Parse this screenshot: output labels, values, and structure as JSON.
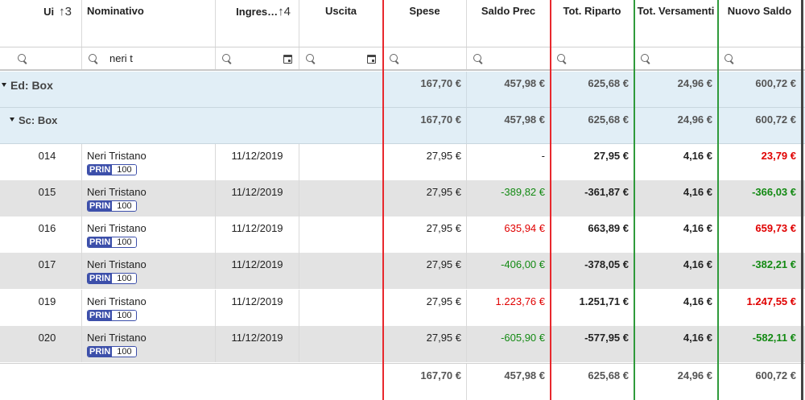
{
  "columns": {
    "ui": "Ui",
    "ui_sort": "↑3",
    "nominativo": "Nominativo",
    "ingresso": "Ingres…",
    "ingresso_sort": "↑4",
    "uscita": "Uscita",
    "spese": "Spese",
    "saldo_prec": "Saldo Prec",
    "tot_riparto": "Tot. Riparto",
    "tot_versamenti": "Tot. Versamenti",
    "nuovo_saldo": "Nuovo Saldo"
  },
  "filters": {
    "nominativo_value": "neri t"
  },
  "groups": [
    {
      "label": "Ed: Box",
      "spese": "167,70 €",
      "saldo_prec": "457,98 €",
      "tot_riparto": "625,68 €",
      "tot_versamenti": "24,96 €",
      "nuovo_saldo": "600,72 €"
    },
    {
      "label": "Sc: Box",
      "spese": "167,70 €",
      "saldo_prec": "457,98 €",
      "tot_riparto": "625,68 €",
      "tot_versamenti": "24,96 €",
      "nuovo_saldo": "600,72 €"
    }
  ],
  "rows": [
    {
      "ui": "014",
      "nome": "Neri Tristano",
      "badge_l": "PRIN",
      "badge_r": "100",
      "ingresso": "11/12/2019",
      "uscita": "",
      "spese": "27,95 €",
      "saldo_prec": "-",
      "tot_riparto": "27,95 €",
      "tot_versamenti": "4,16 €",
      "nuovo_saldo": "23,79 €"
    },
    {
      "ui": "015",
      "nome": "Neri Tristano",
      "badge_l": "PRIN",
      "badge_r": "100",
      "ingresso": "11/12/2019",
      "uscita": "",
      "spese": "27,95 €",
      "saldo_prec": "-389,82 €",
      "tot_riparto": "-361,87 €",
      "tot_versamenti": "4,16 €",
      "nuovo_saldo": "-366,03 €"
    },
    {
      "ui": "016",
      "nome": "Neri Tristano",
      "badge_l": "PRIN",
      "badge_r": "100",
      "ingresso": "11/12/2019",
      "uscita": "",
      "spese": "27,95 €",
      "saldo_prec": "635,94 €",
      "tot_riparto": "663,89 €",
      "tot_versamenti": "4,16 €",
      "nuovo_saldo": "659,73 €"
    },
    {
      "ui": "017",
      "nome": "Neri Tristano",
      "badge_l": "PRIN",
      "badge_r": "100",
      "ingresso": "11/12/2019",
      "uscita": "",
      "spese": "27,95 €",
      "saldo_prec": "-406,00 €",
      "tot_riparto": "-378,05 €",
      "tot_versamenti": "4,16 €",
      "nuovo_saldo": "-382,21 €"
    },
    {
      "ui": "019",
      "nome": "Neri Tristano",
      "badge_l": "PRIN",
      "badge_r": "100",
      "ingresso": "11/12/2019",
      "uscita": "",
      "spese": "27,95 €",
      "saldo_prec": "1.223,76 €",
      "tot_riparto": "1.251,71 €",
      "tot_versamenti": "4,16 €",
      "nuovo_saldo": "1.247,55 €"
    },
    {
      "ui": "020",
      "nome": "Neri Tristano",
      "badge_l": "PRIN",
      "badge_r": "100",
      "ingresso": "11/12/2019",
      "uscita": "",
      "spese": "27,95 €",
      "saldo_prec": "-605,90 €",
      "tot_riparto": "-577,95 €",
      "tot_versamenti": "4,16 €",
      "nuovo_saldo": "-582,11 €"
    }
  ],
  "totals": {
    "spese": "167,70 €",
    "saldo_prec": "457,98 €",
    "tot_riparto": "625,68 €",
    "tot_versamenti": "24,96 €",
    "nuovo_saldo": "600,72 €"
  },
  "colors": {
    "positive": "#e00000",
    "negative": "#138a13",
    "group_bg": "#e1eef6",
    "alt_row": "#e3e3e3",
    "badge": "#3c4faa"
  },
  "icons": [
    "search-icon",
    "calendar-icon",
    "sort-asc-icon",
    "caret-down-icon"
  ]
}
